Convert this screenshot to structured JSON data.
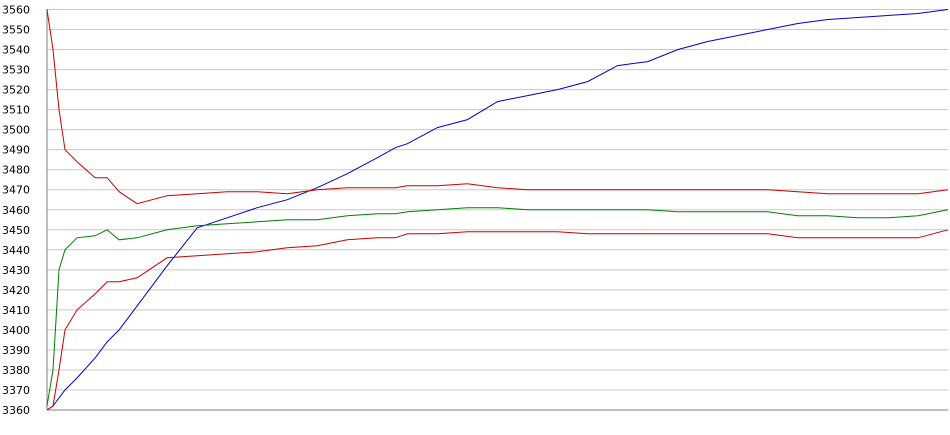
{
  "chart_data": {
    "type": "line",
    "title": "",
    "xlabel": "",
    "ylabel": "",
    "ylim": [
      3360,
      3560
    ],
    "xlim": [
      0,
      150
    ],
    "y_ticks": [
      3360,
      3370,
      3380,
      3390,
      3400,
      3410,
      3420,
      3430,
      3440,
      3450,
      3460,
      3470,
      3480,
      3490,
      3500,
      3510,
      3520,
      3530,
      3540,
      3550,
      3560
    ],
    "grid": true,
    "legend": "none",
    "x": [
      0,
      1,
      2,
      3,
      5,
      8,
      10,
      12,
      15,
      20,
      25,
      30,
      35,
      40,
      45,
      50,
      55,
      58,
      60,
      65,
      70,
      75,
      80,
      85,
      90,
      95,
      100,
      105,
      110,
      115,
      120,
      125,
      130,
      135,
      140,
      145,
      150
    ],
    "series": [
      {
        "color": "#0000cc",
        "values": [
          3360,
          3362,
          3366,
          3370,
          3376,
          3386,
          3394,
          3400,
          3412,
          3432,
          3451,
          3456,
          3461,
          3465,
          3471,
          3478,
          3486,
          3491,
          3493,
          3501,
          3505,
          3514,
          3517,
          3520,
          3524,
          3532,
          3534,
          3540,
          3544,
          3547,
          3550,
          3553,
          3555,
          3556,
          3557,
          3558,
          3560
        ]
      },
      {
        "color": "#cc0000",
        "values": [
          3560,
          3540,
          3510,
          3490,
          3484,
          3476,
          3476,
          3469,
          3463,
          3467,
          3468,
          3469,
          3469,
          3468,
          3470,
          3471,
          3471,
          3471,
          3472,
          3472,
          3473,
          3471,
          3470,
          3470,
          3470,
          3470,
          3470,
          3470,
          3470,
          3470,
          3470,
          3469,
          3468,
          3468,
          3468,
          3468,
          3470
        ]
      },
      {
        "color": "#008000",
        "values": [
          3362,
          3380,
          3430,
          3440,
          3446,
          3447,
          3450,
          3445,
          3446,
          3450,
          3452,
          3453,
          3454,
          3455,
          3455,
          3457,
          3458,
          3458,
          3459,
          3460,
          3461,
          3461,
          3460,
          3460,
          3460,
          3460,
          3460,
          3459,
          3459,
          3459,
          3459,
          3457,
          3457,
          3456,
          3456,
          3457,
          3460
        ]
      },
      {
        "color": "#cc0000",
        "values": [
          3360,
          3362,
          3380,
          3400,
          3410,
          3418,
          3424,
          3424,
          3426,
          3436,
          3437,
          3438,
          3439,
          3441,
          3442,
          3445,
          3446,
          3446,
          3448,
          3448,
          3449,
          3449,
          3449,
          3449,
          3448,
          3448,
          3448,
          3448,
          3448,
          3448,
          3448,
          3446,
          3446,
          3446,
          3446,
          3446,
          3450
        ]
      }
    ]
  }
}
